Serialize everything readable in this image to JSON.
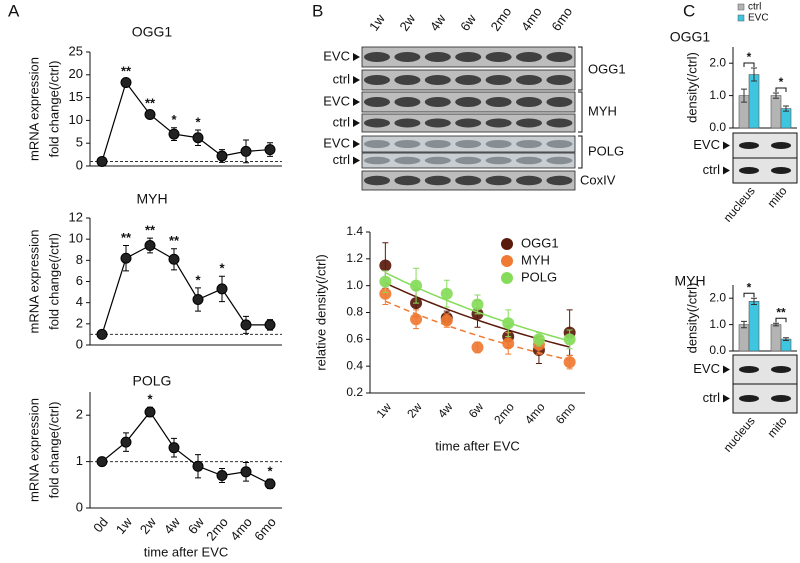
{
  "panels": [
    "A",
    "B",
    "C"
  ],
  "blot": {
    "lanes": [
      "1w",
      "2w",
      "4w",
      "6w",
      "2mo",
      "4mo",
      "6mo"
    ],
    "rows": [
      "EVC",
      "ctrl",
      "EVC",
      "ctrl",
      "EVC",
      "ctrl"
    ],
    "genes": [
      "OGG1",
      "MYH",
      "POLG",
      "CoxIV"
    ]
  },
  "chart_data": [
    {
      "type": "line",
      "title": "OGG1",
      "ylabel": [
        "mRNA expression",
        "fold change(/ctrl)"
      ],
      "categories": [
        null,
        null,
        null,
        null,
        null,
        null,
        null,
        null
      ],
      "values": [
        1,
        18.3,
        11.3,
        7,
        6.2,
        2.2,
        3.2,
        3.6
      ],
      "errors": [
        0.4,
        0.8,
        0.8,
        1.4,
        1.7,
        1.4,
        2.5,
        1.5
      ],
      "annotations": [
        null,
        "**",
        "**",
        "*",
        "*",
        null,
        null,
        null
      ],
      "reference_line": 1,
      "color": "#000000",
      "ylim": [
        0,
        25
      ],
      "yticks": [
        0,
        5,
        10,
        15,
        20,
        25
      ]
    },
    {
      "type": "line",
      "title": "MYH",
      "ylabel": [
        "mRNA expression",
        "fold change(/ctrl)"
      ],
      "categories": [
        null,
        null,
        null,
        null,
        null,
        null,
        null,
        null
      ],
      "values": [
        1,
        8.2,
        9.4,
        8.1,
        4.3,
        5.3,
        1.9,
        1.9
      ],
      "errors": [
        0.2,
        1.2,
        0.7,
        1.0,
        1.1,
        1.2,
        0.8,
        0.5
      ],
      "annotations": [
        null,
        "**",
        "**",
        "**",
        "*",
        "*",
        null,
        null
      ],
      "reference_line": 1,
      "color": "#000000",
      "ylim": [
        0,
        12
      ],
      "yticks": [
        0,
        2,
        4,
        6,
        8,
        10,
        12
      ]
    },
    {
      "type": "line",
      "title": "POLG",
      "ylabel": [
        "mRNA expression",
        "fold change(/ctrl)"
      ],
      "xlabel": "time after EVC",
      "categories": [
        "0d",
        "1w",
        "2w",
        "4w",
        "6w",
        "2mo",
        "4mo",
        "6mo"
      ],
      "values": [
        1,
        1.42,
        2.07,
        1.3,
        0.9,
        0.7,
        0.78,
        0.52
      ],
      "errors": [
        0.05,
        0.2,
        0.1,
        0.2,
        0.25,
        0.15,
        0.2,
        0.1
      ],
      "annotations": [
        null,
        null,
        "*",
        null,
        null,
        null,
        null,
        "*"
      ],
      "reference_line": 1,
      "color": "#000000",
      "ylim": [
        0,
        2.5
      ],
      "yticks": [
        0,
        1,
        2
      ]
    },
    {
      "type": "line",
      "trendline": true,
      "ylabel": "relative density(/ctrl)",
      "xlabel": "time after EVC",
      "categories": [
        "1w",
        "2w",
        "4w",
        "6w",
        "2mo",
        "4mo",
        "6mo"
      ],
      "series": [
        {
          "name": "OGG1",
          "color": "#5a1a0c",
          "values": [
            1.15,
            0.87,
            0.76,
            0.79,
            0.62,
            0.52,
            0.65
          ],
          "errors": [
            0.17,
            0.1,
            0.05,
            0.1,
            0.08,
            0.1,
            0.17
          ]
        },
        {
          "name": "MYH",
          "color": "#f07a32",
          "dashed": true,
          "values": [
            0.94,
            0.75,
            0.74,
            0.54,
            0.57,
            0.56,
            0.43
          ],
          "errors": [
            0.08,
            0.07,
            0.05,
            0.04,
            0.08,
            0.07,
            0.05
          ]
        },
        {
          "name": "POLG",
          "color": "#86dc5a",
          "values": [
            1.03,
            1.0,
            0.94,
            0.86,
            0.72,
            0.6,
            0.6
          ],
          "errors": [
            0.08,
            0.13,
            0.1,
            0.07,
            0.1,
            0.05,
            0.07
          ]
        }
      ],
      "ylim": [
        0.2,
        1.4
      ],
      "yticks": [
        0.2,
        0.4,
        0.6,
        0.8,
        {
          "value": 1,
          "label": "1.0"
        },
        1.2,
        1.4
      ],
      "legend": "upper right"
    },
    {
      "type": "bar",
      "title": "OGG1",
      "ylabel": "density(/ctrl)",
      "categories": [
        "nucleus",
        "mito"
      ],
      "series": [
        {
          "name": "ctrl",
          "color": "#b4b4b4",
          "values": [
            1,
            1
          ],
          "errors": [
            0.2,
            0.08
          ]
        },
        {
          "name": "EVC",
          "color": "#3ec6e0",
          "values": [
            1.65,
            0.6
          ],
          "errors": [
            0.2,
            0.08
          ]
        }
      ],
      "annotations": [
        "*",
        "*"
      ],
      "blot_labels": [
        "EVC",
        "ctrl"
      ],
      "ylim": [
        0,
        2.5
      ],
      "yticks": [
        {
          "value": 0,
          "label": "0.0"
        },
        {
          "value": 1,
          "label": "1.0"
        },
        {
          "value": 2,
          "label": "2.0"
        }
      ],
      "legend": "top"
    },
    {
      "type": "bar",
      "title": "MYH",
      "ylabel": "density(/ctrl)",
      "categories": [
        "nucleus",
        "mito"
      ],
      "series": [
        {
          "color": "#b4b4b4",
          "values": [
            1,
            1
          ],
          "errors": [
            0.12,
            0.05
          ]
        },
        {
          "color": "#3ec6e0",
          "values": [
            1.88,
            0.45
          ],
          "errors": [
            0.12,
            0.05
          ]
        }
      ],
      "annotations": [
        "*",
        "**"
      ],
      "blot_labels": [
        "EVC",
        "ctrl"
      ],
      "ylim": [
        0,
        2.5
      ],
      "yticks": [
        {
          "value": 0,
          "label": "0.0"
        },
        {
          "value": 1,
          "label": "1.0"
        },
        {
          "value": 2,
          "label": "2.0"
        }
      ]
    }
  ]
}
